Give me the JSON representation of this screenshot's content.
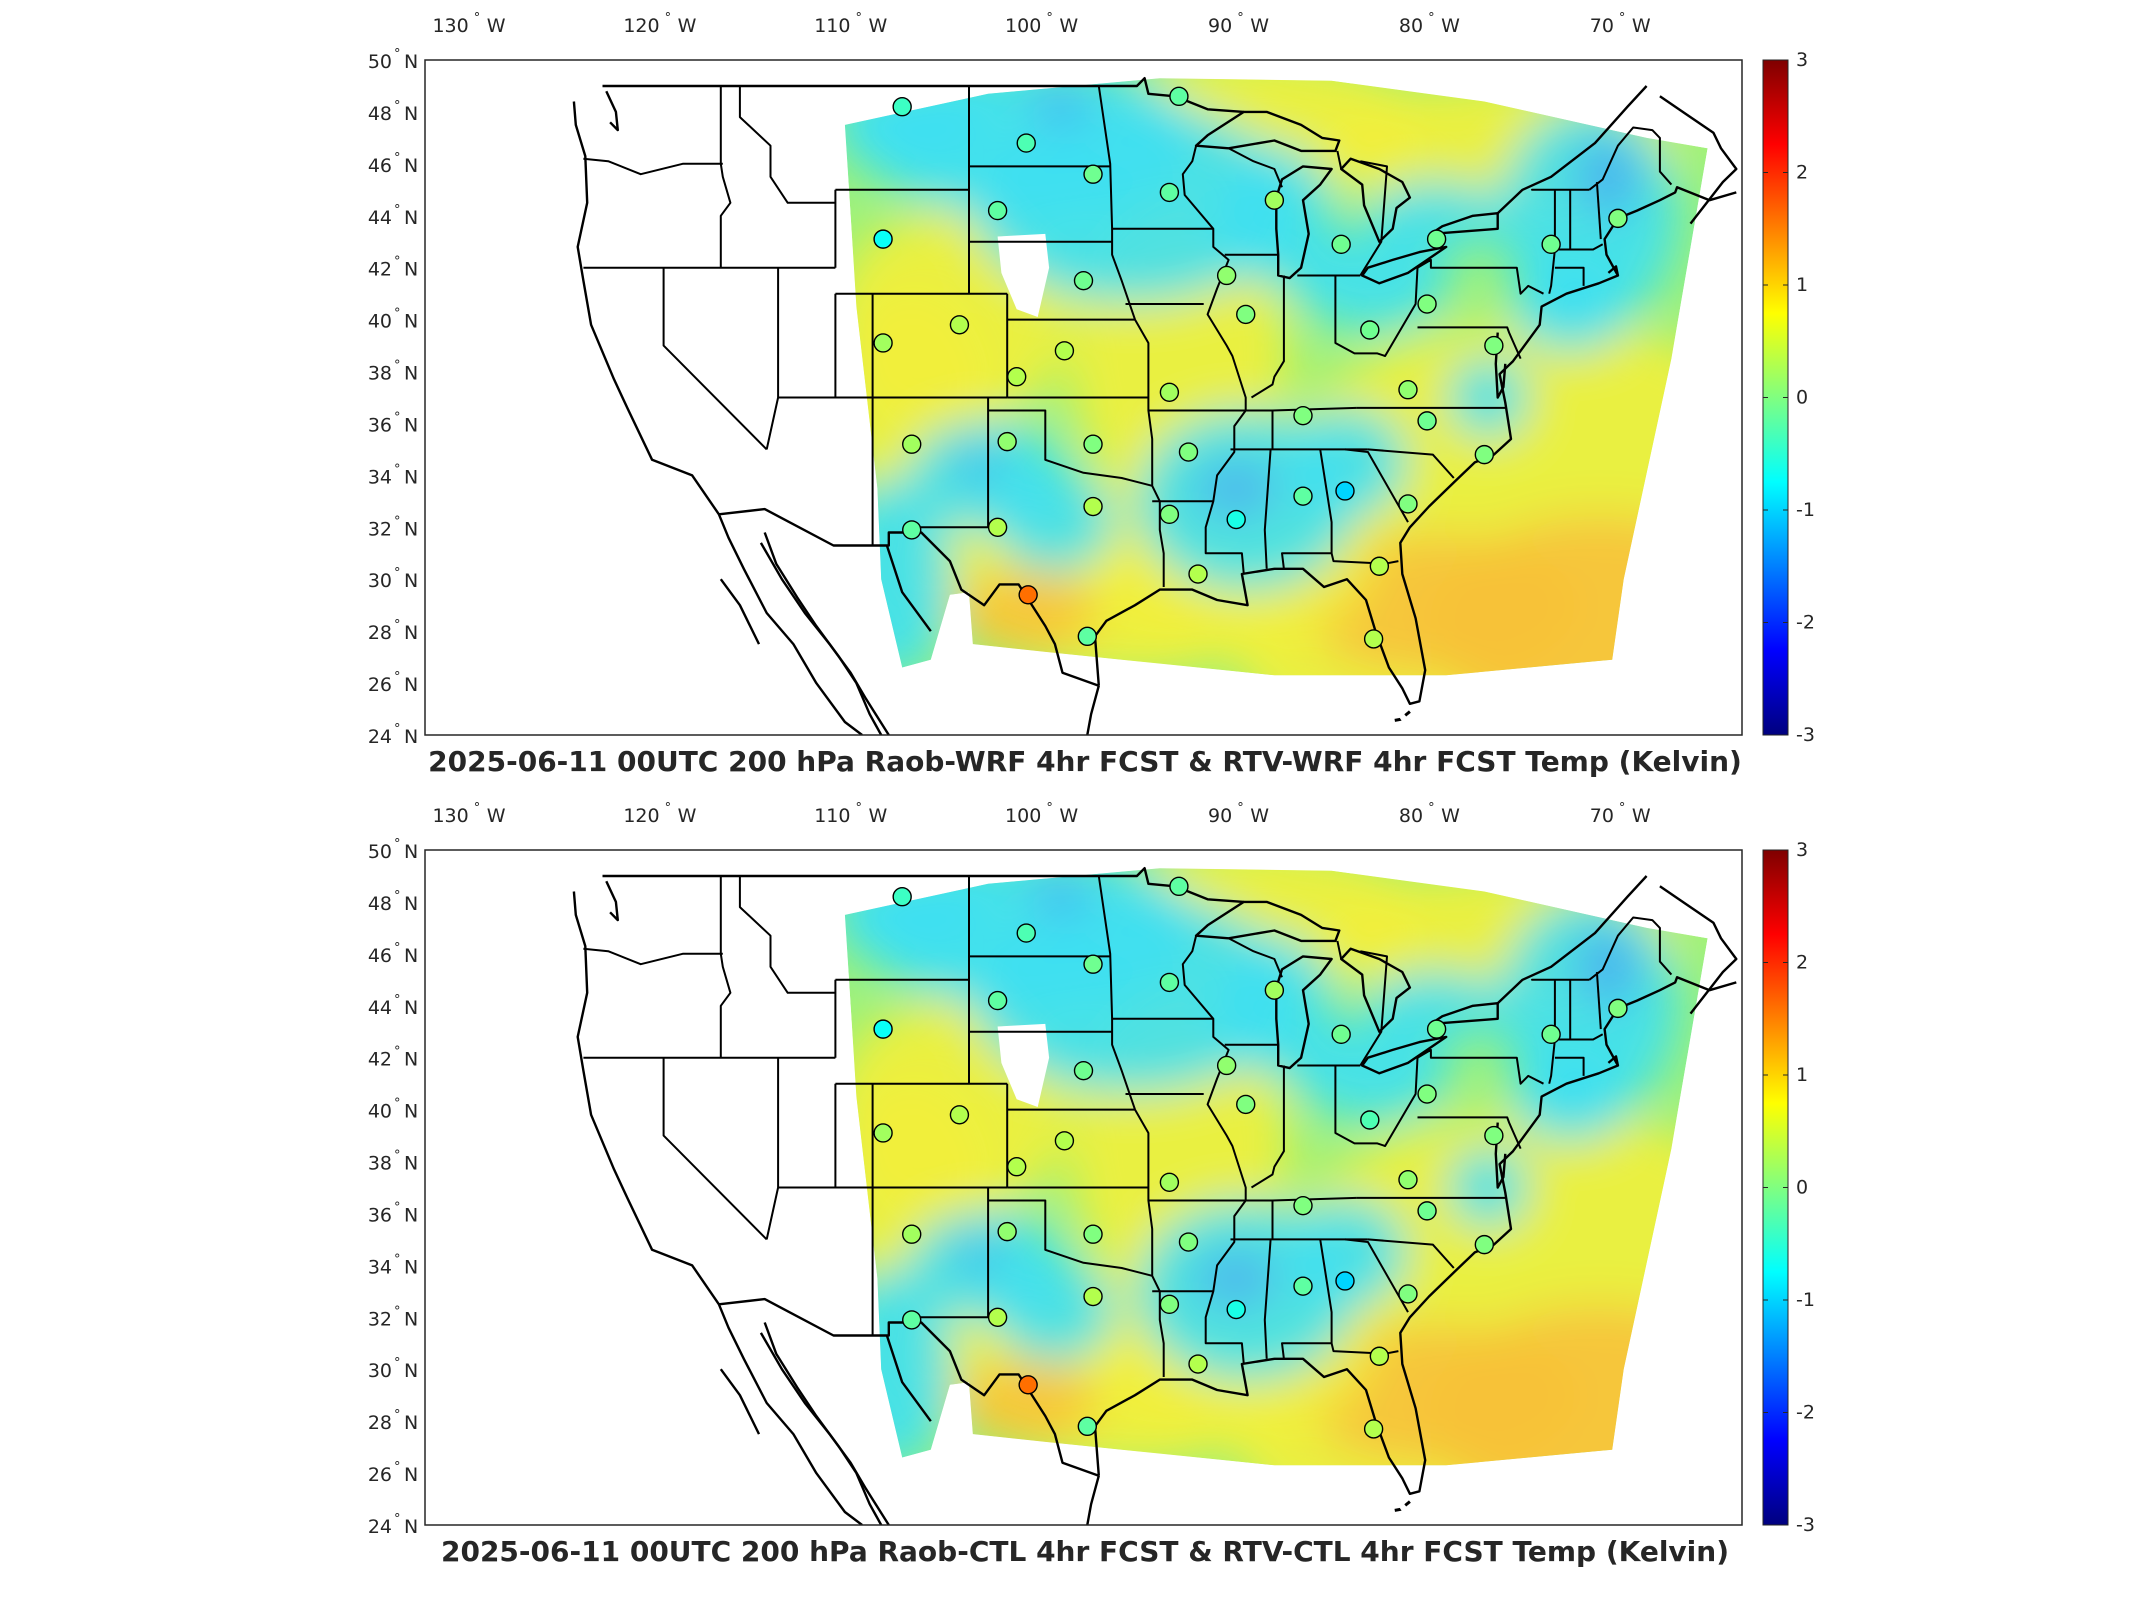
{
  "degree_symbol": "°",
  "longitude_ticks": [
    {
      "deg": "130",
      "hemi": "W",
      "lon": -130
    },
    {
      "deg": "120",
      "hemi": "W",
      "lon": -120
    },
    {
      "deg": "110",
      "hemi": "W",
      "lon": -110
    },
    {
      "deg": "100",
      "hemi": "W",
      "lon": -100
    },
    {
      "deg": "90",
      "hemi": "W",
      "lon": -90
    },
    {
      "deg": "80",
      "hemi": "W",
      "lon": -80
    },
    {
      "deg": "70",
      "hemi": "W",
      "lon": -70
    }
  ],
  "latitude_ticks": [
    {
      "deg": "50",
      "hemi": "N",
      "lat": 50
    },
    {
      "deg": "48",
      "hemi": "N",
      "lat": 48
    },
    {
      "deg": "46",
      "hemi": "N",
      "lat": 46
    },
    {
      "deg": "44",
      "hemi": "N",
      "lat": 44
    },
    {
      "deg": "42",
      "hemi": "N",
      "lat": 42
    },
    {
      "deg": "40",
      "hemi": "N",
      "lat": 40
    },
    {
      "deg": "38",
      "hemi": "N",
      "lat": 38
    },
    {
      "deg": "36",
      "hemi": "N",
      "lat": 36
    },
    {
      "deg": "34",
      "hemi": "N",
      "lat": 34
    },
    {
      "deg": "32",
      "hemi": "N",
      "lat": 32
    },
    {
      "deg": "30",
      "hemi": "N",
      "lat": 30
    },
    {
      "deg": "28",
      "hemi": "N",
      "lat": 28
    },
    {
      "deg": "26",
      "hemi": "N",
      "lat": 26
    },
    {
      "deg": "24",
      "hemi": "N",
      "lat": 24
    }
  ],
  "colorbar": {
    "min": -3,
    "max": 3,
    "tick_labels": [
      "3",
      "2",
      "1",
      "0",
      "-1",
      "-2",
      "-3"
    ],
    "colormap": "jet",
    "stops": [
      "#00007f",
      "#0000ff",
      "#0080ff",
      "#00ffff",
      "#80ff80",
      "#ffff00",
      "#ff8000",
      "#ff0000",
      "#7f0000"
    ]
  },
  "field_colors": {
    "cyan": "#3ee0f2",
    "green": "#9cf27a",
    "yellow": "#f2f03c",
    "orange": "#f7c23a",
    "blue": "#4aa8f2",
    "missing": "#ffffff"
  },
  "panels": [
    {
      "title": "2025-06-11 00UTC 200 hPa Raob-WRF 4hr FCST & RTV-WRF 4hr FCST Temp (Kelvin)",
      "stations": [
        {
          "lon": -107.5,
          "lat": 48.2,
          "value": -0.4
        },
        {
          "lon": -101.0,
          "lat": 46.8,
          "value": -0.3
        },
        {
          "lon": -97.5,
          "lat": 45.6,
          "value": -0.1
        },
        {
          "lon": -93.0,
          "lat": 48.6,
          "value": -0.2
        },
        {
          "lon": -93.5,
          "lat": 44.9,
          "value": -0.2
        },
        {
          "lon": -102.5,
          "lat": 44.2,
          "value": -0.2
        },
        {
          "lon": -108.5,
          "lat": 43.1,
          "value": -0.7
        },
        {
          "lon": -98.0,
          "lat": 41.5,
          "value": -0.1
        },
        {
          "lon": -90.5,
          "lat": 41.7,
          "value": 0.1
        },
        {
          "lon": -89.5,
          "lat": 40.2,
          "value": 0.0
        },
        {
          "lon": -88.0,
          "lat": 44.6,
          "value": 0.2
        },
        {
          "lon": -84.5,
          "lat": 42.9,
          "value": -0.1
        },
        {
          "lon": -79.5,
          "lat": 43.1,
          "value": -0.1
        },
        {
          "lon": -73.5,
          "lat": 42.9,
          "value": -0.1
        },
        {
          "lon": -70.0,
          "lat": 43.9,
          "value": 0.0
        },
        {
          "lon": -80.0,
          "lat": 40.6,
          "value": 0.0
        },
        {
          "lon": -83.0,
          "lat": 39.6,
          "value": -0.1
        },
        {
          "lon": -76.5,
          "lat": 39.0,
          "value": 0.0
        },
        {
          "lon": -108.5,
          "lat": 39.1,
          "value": 0.2
        },
        {
          "lon": -104.5,
          "lat": 39.8,
          "value": 0.3
        },
        {
          "lon": -99.0,
          "lat": 38.8,
          "value": 0.3
        },
        {
          "lon": -101.5,
          "lat": 37.8,
          "value": 0.3
        },
        {
          "lon": -93.5,
          "lat": 37.2,
          "value": 0.2
        },
        {
          "lon": -86.5,
          "lat": 36.3,
          "value": 0.0
        },
        {
          "lon": -81.0,
          "lat": 37.3,
          "value": 0.1
        },
        {
          "lon": -80.0,
          "lat": 36.1,
          "value": -0.1
        },
        {
          "lon": -77.0,
          "lat": 34.8,
          "value": 0.0
        },
        {
          "lon": -107.0,
          "lat": 35.2,
          "value": 0.2
        },
        {
          "lon": -102.0,
          "lat": 35.3,
          "value": 0.1
        },
        {
          "lon": -97.5,
          "lat": 35.2,
          "value": 0.0
        },
        {
          "lon": -92.5,
          "lat": 34.9,
          "value": 0.0
        },
        {
          "lon": -90.0,
          "lat": 32.3,
          "value": -0.6
        },
        {
          "lon": -86.5,
          "lat": 33.2,
          "value": -0.2
        },
        {
          "lon": -84.3,
          "lat": 33.4,
          "value": -1.0
        },
        {
          "lon": -81.0,
          "lat": 32.9,
          "value": 0.0
        },
        {
          "lon": -107.0,
          "lat": 31.9,
          "value": -0.2
        },
        {
          "lon": -102.5,
          "lat": 32.0,
          "value": 0.3
        },
        {
          "lon": -97.5,
          "lat": 32.8,
          "value": 0.3
        },
        {
          "lon": -93.5,
          "lat": 32.5,
          "value": 0.0
        },
        {
          "lon": -92.0,
          "lat": 30.2,
          "value": 0.3
        },
        {
          "lon": -82.5,
          "lat": 30.5,
          "value": 0.3
        },
        {
          "lon": -100.9,
          "lat": 29.4,
          "value": 1.6
        },
        {
          "lon": -97.8,
          "lat": 27.8,
          "value": -0.2
        },
        {
          "lon": -82.8,
          "lat": 27.7,
          "value": 0.3
        }
      ]
    },
    {
      "title": "2025-06-11 00UTC 200 hPa Raob-CTL 4hr FCST & RTV-CTL 4hr FCST Temp (Kelvin)",
      "stations": [
        {
          "lon": -107.5,
          "lat": 48.2,
          "value": -0.4
        },
        {
          "lon": -101.0,
          "lat": 46.8,
          "value": -0.3
        },
        {
          "lon": -97.5,
          "lat": 45.6,
          "value": -0.1
        },
        {
          "lon": -93.0,
          "lat": 48.6,
          "value": -0.2
        },
        {
          "lon": -93.5,
          "lat": 44.9,
          "value": -0.2
        },
        {
          "lon": -102.5,
          "lat": 44.2,
          "value": -0.2
        },
        {
          "lon": -108.5,
          "lat": 43.1,
          "value": -0.7
        },
        {
          "lon": -98.0,
          "lat": 41.5,
          "value": -0.1
        },
        {
          "lon": -90.5,
          "lat": 41.7,
          "value": 0.1
        },
        {
          "lon": -89.5,
          "lat": 40.2,
          "value": 0.0
        },
        {
          "lon": -88.0,
          "lat": 44.6,
          "value": 0.2
        },
        {
          "lon": -84.5,
          "lat": 42.9,
          "value": -0.1
        },
        {
          "lon": -79.5,
          "lat": 43.1,
          "value": -0.1
        },
        {
          "lon": -73.5,
          "lat": 42.9,
          "value": -0.1
        },
        {
          "lon": -70.0,
          "lat": 43.9,
          "value": 0.0
        },
        {
          "lon": -80.0,
          "lat": 40.6,
          "value": 0.0
        },
        {
          "lon": -83.0,
          "lat": 39.6,
          "value": -0.3
        },
        {
          "lon": -76.5,
          "lat": 39.0,
          "value": 0.0
        },
        {
          "lon": -108.5,
          "lat": 39.1,
          "value": 0.2
        },
        {
          "lon": -104.5,
          "lat": 39.8,
          "value": 0.3
        },
        {
          "lon": -99.0,
          "lat": 38.8,
          "value": 0.3
        },
        {
          "lon": -101.5,
          "lat": 37.8,
          "value": 0.3
        },
        {
          "lon": -93.5,
          "lat": 37.2,
          "value": 0.2
        },
        {
          "lon": -86.5,
          "lat": 36.3,
          "value": 0.0
        },
        {
          "lon": -81.0,
          "lat": 37.3,
          "value": 0.1
        },
        {
          "lon": -80.0,
          "lat": 36.1,
          "value": -0.1
        },
        {
          "lon": -77.0,
          "lat": 34.8,
          "value": 0.0
        },
        {
          "lon": -107.0,
          "lat": 35.2,
          "value": 0.2
        },
        {
          "lon": -102.0,
          "lat": 35.3,
          "value": 0.1
        },
        {
          "lon": -97.5,
          "lat": 35.2,
          "value": 0.0
        },
        {
          "lon": -92.5,
          "lat": 34.9,
          "value": 0.0
        },
        {
          "lon": -90.0,
          "lat": 32.3,
          "value": -0.6
        },
        {
          "lon": -86.5,
          "lat": 33.2,
          "value": -0.2
        },
        {
          "lon": -84.3,
          "lat": 33.4,
          "value": -1.0
        },
        {
          "lon": -81.0,
          "lat": 32.9,
          "value": 0.0
        },
        {
          "lon": -107.0,
          "lat": 31.9,
          "value": -0.2
        },
        {
          "lon": -102.5,
          "lat": 32.0,
          "value": 0.3
        },
        {
          "lon": -97.5,
          "lat": 32.8,
          "value": 0.3
        },
        {
          "lon": -93.5,
          "lat": 32.5,
          "value": 0.0
        },
        {
          "lon": -92.0,
          "lat": 30.2,
          "value": 0.3
        },
        {
          "lon": -82.5,
          "lat": 30.5,
          "value": 0.3
        },
        {
          "lon": -100.9,
          "lat": 29.4,
          "value": 1.6
        },
        {
          "lon": -97.8,
          "lat": 27.8,
          "value": -0.2
        },
        {
          "lon": -82.8,
          "lat": 27.7,
          "value": 0.3
        }
      ]
    }
  ]
}
